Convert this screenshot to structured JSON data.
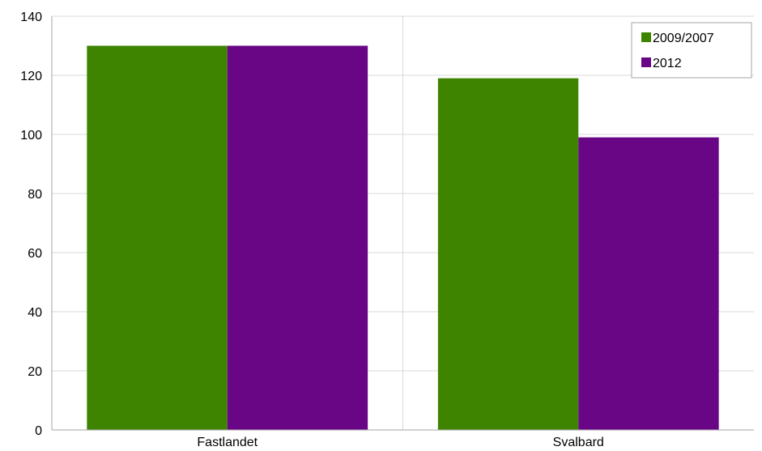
{
  "chart_data": {
    "type": "bar",
    "categories": [
      "Fastlandet",
      "Svalbard"
    ],
    "series": [
      {
        "name": "2009/2007",
        "color": "#3f8400",
        "values": [
          130,
          119
        ]
      },
      {
        "name": "2012",
        "color": "#690686",
        "values": [
          130,
          99
        ]
      }
    ],
    "ylim": [
      0,
      140
    ],
    "yticks": [
      0,
      20,
      40,
      60,
      80,
      100,
      120,
      140
    ],
    "grid": true,
    "legend": "top-right"
  }
}
